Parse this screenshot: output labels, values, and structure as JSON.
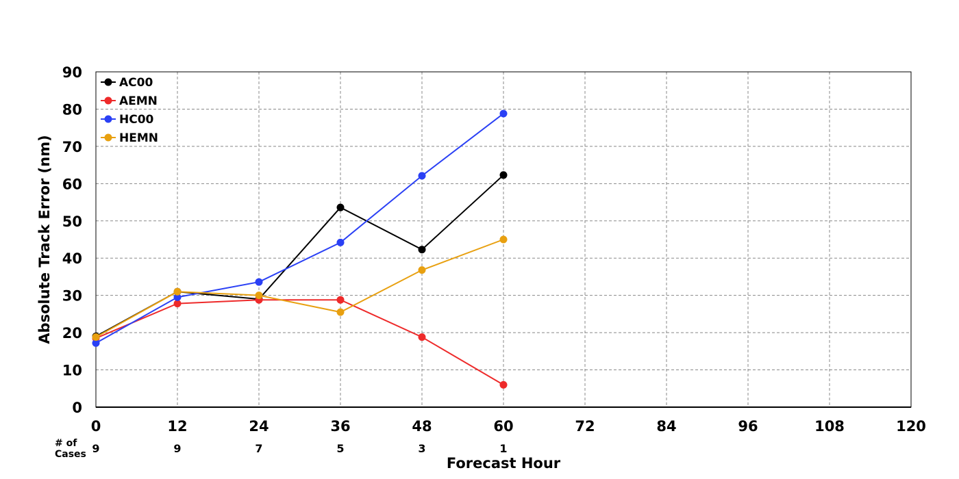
{
  "chart_data": {
    "type": "line",
    "title": "",
    "xlabel": "Forecast Hour",
    "ylabel": "Absolute Track Error (nm)",
    "xlim": [
      0,
      120
    ],
    "ylim": [
      0,
      90
    ],
    "x_ticks": [
      0,
      12,
      24,
      36,
      48,
      60,
      72,
      84,
      96,
      108,
      120
    ],
    "y_ticks": [
      0,
      10,
      20,
      30,
      40,
      50,
      60,
      70,
      80,
      90
    ],
    "grid": true,
    "legend_position": "top-left",
    "x": [
      0,
      12,
      24,
      36,
      48,
      60
    ],
    "series": [
      {
        "name": "AC00",
        "color": "#000000",
        "values": [
          19.0,
          31.0,
          29.0,
          53.6,
          42.3,
          62.3
        ]
      },
      {
        "name": "AEMN",
        "color": "#ee2a2a",
        "values": [
          18.5,
          27.8,
          28.8,
          28.8,
          18.8,
          6.0
        ]
      },
      {
        "name": "HC00",
        "color": "#2a40f5",
        "values": [
          17.2,
          29.5,
          33.6,
          44.2,
          62.1,
          78.8
        ]
      },
      {
        "name": "HEMN",
        "color": "#e8a010",
        "values": [
          18.8,
          31.0,
          30.0,
          25.5,
          36.8,
          45.0
        ]
      }
    ],
    "cases": {
      "label_line1": "# of",
      "label_line2": "Cases",
      "x": [
        0,
        12,
        24,
        36,
        48,
        60
      ],
      "values": [
        "9",
        "9",
        "7",
        "5",
        "3",
        "1"
      ]
    }
  }
}
